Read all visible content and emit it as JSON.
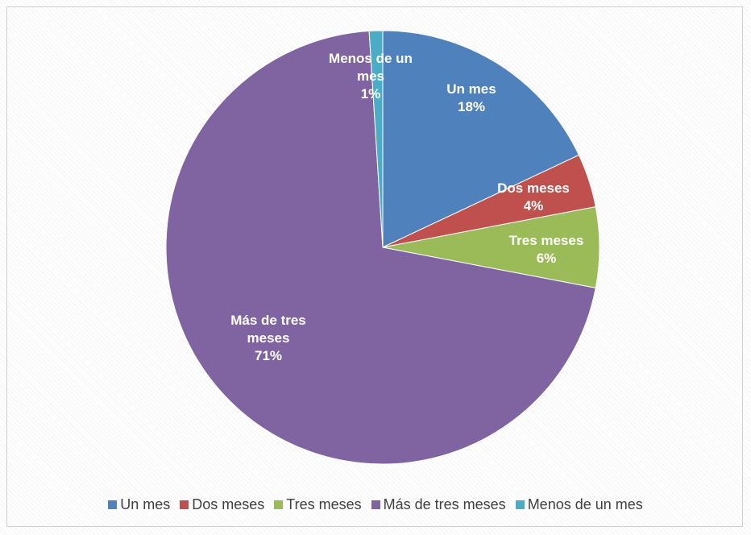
{
  "chart_data": {
    "type": "pie",
    "categories": [
      "Un mes",
      "Dos meses",
      "Tres meses",
      "Más de tres meses",
      "Menos de un mes"
    ],
    "values": [
      18,
      4,
      6,
      71,
      1
    ],
    "value_labels": [
      "18%",
      "4%",
      "6%",
      "71%",
      "1%"
    ],
    "colors": [
      "#4f81bd",
      "#c0504d",
      "#9bbb59",
      "#8064a2",
      "#4bacc6"
    ],
    "legend": "bottom"
  }
}
